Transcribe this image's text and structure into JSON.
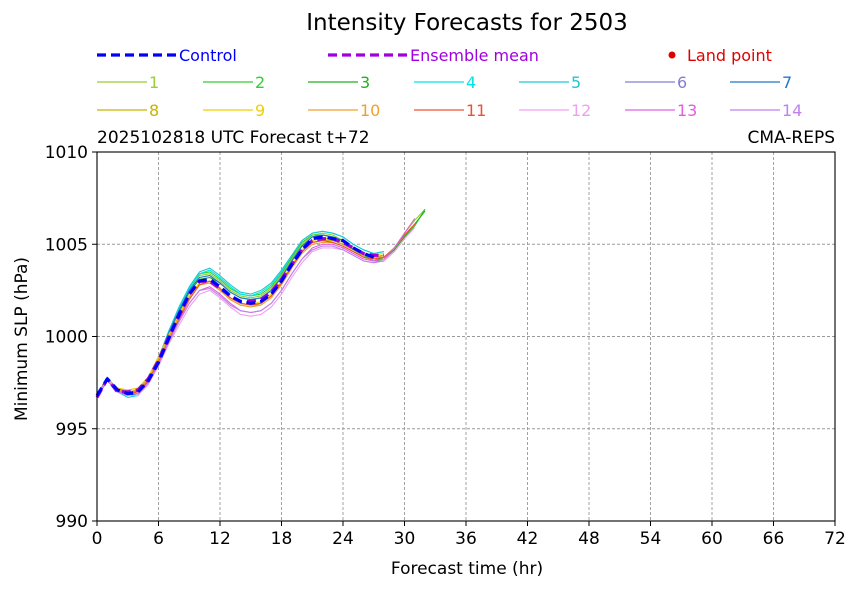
{
  "chart_data": {
    "type": "line",
    "title": "Intensity Forecasts for 2503",
    "subtitle_left": "2025102818 UTC Forecast t+72",
    "subtitle_right": "CMA-REPS",
    "xlabel": "Forecast time (hr)",
    "ylabel": "Minimum SLP (hPa)",
    "xlim": [
      0,
      72
    ],
    "ylim": [
      990,
      1010
    ],
    "xticks": [
      "0",
      "6",
      "12",
      "18",
      "24",
      "30",
      "36",
      "42",
      "48",
      "54",
      "60",
      "66",
      "72"
    ],
    "yticks": [
      "990",
      "995",
      "1000",
      "1005",
      "1010"
    ],
    "grid": true,
    "legend_top": [
      {
        "label": "Control",
        "color": "#0000ff",
        "style": "dashed"
      },
      {
        "label": "Ensemble mean",
        "color": "#a000e0",
        "style": "dashed"
      },
      {
        "label": "Land point",
        "color": "#e00000",
        "style": "dot"
      }
    ],
    "legend_members": [
      {
        "label": "1",
        "color": "#9acd32"
      },
      {
        "label": "2",
        "color": "#32cd32"
      },
      {
        "label": "3",
        "color": "#22b022"
      },
      {
        "label": "4",
        "color": "#00e5e5"
      },
      {
        "label": "5",
        "color": "#1ec8d2"
      },
      {
        "label": "6",
        "color": "#8080d0"
      },
      {
        "label": "7",
        "color": "#1e78c8"
      },
      {
        "label": "8",
        "color": "#c8b400"
      },
      {
        "label": "9",
        "color": "#f0d000"
      },
      {
        "label": "10",
        "color": "#f0a030"
      },
      {
        "label": "11",
        "color": "#f05030"
      },
      {
        "label": "12",
        "color": "#f0a0f0"
      },
      {
        "label": "13",
        "color": "#e060e0"
      },
      {
        "label": "14",
        "color": "#c080f0"
      }
    ],
    "x": [
      0,
      1,
      2,
      3,
      4,
      5,
      6,
      7,
      8,
      9,
      10,
      11,
      12,
      13,
      14,
      15,
      16,
      17,
      18,
      19,
      20,
      21,
      22,
      23,
      24,
      25,
      26,
      27,
      28,
      29,
      30,
      31,
      32
    ],
    "series": [
      {
        "name": "Control",
        "values": [
          996.8,
          997.7,
          997.1,
          996.9,
          997.0,
          997.6,
          998.6,
          999.9,
          1001.2,
          1002.3,
          1003.0,
          1003.1,
          1002.7,
          1002.2,
          1001.9,
          1001.8,
          1001.9,
          1002.3,
          1003.0,
          1003.9,
          1004.7,
          1005.3,
          1005.4,
          1005.3,
          1005.2,
          1004.8,
          1004.5,
          1004.3,
          null,
          null,
          null,
          null,
          null
        ]
      },
      {
        "name": "Ensemble mean",
        "values": [
          996.7,
          997.7,
          997.0,
          997.0,
          997.1,
          997.7,
          998.7,
          1000.0,
          1001.1,
          1002.3,
          1003.0,
          1003.0,
          1002.6,
          1002.2,
          1001.9,
          1001.9,
          1002.0,
          1002.4,
          1003.1,
          1003.9,
          1004.7,
          1005.2,
          1005.3,
          1005.3,
          1005.1,
          1004.8,
          1004.5,
          1004.4,
          1004.4,
          null,
          null,
          null,
          null
        ]
      },
      {
        "name": "1",
        "values": [
          996.8,
          997.7,
          997.2,
          997.0,
          997.0,
          997.6,
          998.7,
          1000.1,
          1001.4,
          1002.5,
          1003.3,
          1003.4,
          1003.0,
          1002.5,
          1002.2,
          1002.1,
          1002.2,
          1002.6,
          1003.3,
          1004.2,
          1005.0,
          1005.5,
          1005.6,
          1005.5,
          1005.2,
          1004.7,
          1004.3,
          1004.1,
          1004.3,
          1004.8,
          1005.6,
          1006.3,
          1006.9
        ]
      },
      {
        "name": "2",
        "values": [
          996.8,
          997.8,
          997.1,
          996.9,
          997.1,
          997.8,
          998.9,
          1000.2,
          1001.5,
          1002.6,
          1003.4,
          1003.5,
          1003.1,
          1002.6,
          1002.3,
          1002.2,
          1002.3,
          1002.7,
          1003.4,
          1004.3,
          1005.1,
          1005.5,
          1005.5,
          1005.4,
          1005.2,
          1004.8,
          1004.4,
          1004.1,
          1004.1,
          1004.6,
          1005.3,
          1006.0,
          1006.9
        ]
      },
      {
        "name": "3",
        "values": [
          996.7,
          997.7,
          997.2,
          997.0,
          997.1,
          997.7,
          998.8,
          1000.1,
          1001.3,
          1002.4,
          1003.1,
          1003.2,
          1002.9,
          1002.4,
          1002.1,
          1002.0,
          1002.1,
          1002.5,
          1003.2,
          1004.1,
          1004.9,
          1005.4,
          1005.5,
          1005.4,
          1005.2,
          1004.8,
          1004.4,
          1004.2,
          1004.2,
          1004.7,
          1005.4,
          1006.1,
          1006.8
        ]
      },
      {
        "name": "4",
        "values": [
          996.8,
          997.7,
          997.1,
          996.8,
          996.9,
          997.6,
          998.8,
          1000.3,
          1001.5,
          1002.6,
          1003.4,
          1003.6,
          1003.2,
          1002.7,
          1002.3,
          1002.2,
          1002.4,
          1002.8,
          1003.5,
          1004.4,
          1005.2,
          1005.6,
          1005.7,
          1005.6,
          1005.4,
          1005.0,
          1004.7,
          1004.5,
          1004.6,
          null,
          null,
          null,
          null
        ]
      },
      {
        "name": "5",
        "values": [
          996.8,
          997.7,
          997.0,
          996.7,
          996.8,
          997.5,
          998.8,
          1000.3,
          1001.6,
          1002.7,
          1003.5,
          1003.7,
          1003.3,
          1002.8,
          1002.4,
          1002.3,
          1002.5,
          1002.9,
          1003.6,
          1004.4,
          1005.2,
          1005.6,
          1005.7,
          1005.6,
          1005.4,
          1005.0,
          1004.7,
          1004.5,
          1004.6,
          null,
          null,
          null,
          null
        ]
      },
      {
        "name": "6",
        "values": [
          996.7,
          997.7,
          997.1,
          997.0,
          997.1,
          997.7,
          998.7,
          1000.0,
          1001.1,
          1002.2,
          1002.9,
          1003.0,
          1002.6,
          1002.1,
          1001.8,
          1001.7,
          1001.8,
          1002.2,
          1002.9,
          1003.8,
          1004.6,
          1005.1,
          1005.2,
          1005.2,
          1005.0,
          1004.7,
          1004.4,
          1004.3,
          1004.4,
          null,
          null,
          null,
          null
        ]
      },
      {
        "name": "7",
        "values": [
          996.8,
          997.7,
          997.0,
          996.8,
          996.9,
          997.6,
          998.8,
          1000.2,
          1001.4,
          1002.5,
          1003.2,
          1003.3,
          1002.9,
          1002.4,
          1002.1,
          1002.0,
          1002.1,
          1002.5,
          1003.2,
          1004.1,
          1004.9,
          1005.4,
          1005.5,
          1005.4,
          1005.2,
          1004.8,
          1004.5,
          1004.3,
          1004.4,
          null,
          null,
          null,
          null
        ]
      },
      {
        "name": "8",
        "values": [
          996.7,
          997.7,
          997.2,
          997.1,
          997.2,
          997.8,
          998.8,
          1000.0,
          1001.1,
          1002.1,
          1002.8,
          1002.9,
          1002.5,
          1002.0,
          1001.7,
          1001.6,
          1001.8,
          1002.2,
          1002.9,
          1003.8,
          1004.6,
          1005.1,
          1005.2,
          1005.2,
          1005.0,
          1004.7,
          1004.4,
          1004.3,
          1004.4,
          null,
          null,
          null,
          null
        ]
      },
      {
        "name": "9",
        "values": [
          996.7,
          997.7,
          997.2,
          997.1,
          997.2,
          997.8,
          998.9,
          1000.1,
          1001.2,
          1002.2,
          1002.9,
          1003.0,
          1002.6,
          1002.1,
          1001.8,
          1001.7,
          1001.9,
          1002.3,
          1003.0,
          1003.9,
          1004.7,
          1005.2,
          1005.3,
          1005.3,
          1005.1,
          1004.8,
          1004.5,
          1004.4,
          1004.5,
          null,
          null,
          null,
          null
        ]
      },
      {
        "name": "10",
        "values": [
          996.7,
          997.7,
          997.1,
          997.0,
          997.1,
          997.7,
          998.7,
          999.9,
          1001.0,
          1002.1,
          1002.8,
          1002.9,
          1002.5,
          1002.0,
          1001.7,
          1001.6,
          1001.7,
          1002.1,
          1002.8,
          1003.7,
          1004.5,
          1005.0,
          1005.1,
          1005.1,
          1004.9,
          1004.6,
          1004.3,
          1004.2,
          1004.4,
          null,
          null,
          null,
          null
        ]
      },
      {
        "name": "11",
        "values": [
          996.7,
          997.7,
          997.0,
          996.9,
          997.0,
          997.6,
          998.6,
          999.8,
          1000.9,
          1002.0,
          1002.8,
          1003.0,
          1002.6,
          1002.1,
          1001.8,
          1001.7,
          1001.8,
          1002.2,
          1002.9,
          1003.8,
          1004.6,
          1005.1,
          1005.2,
          1005.1,
          1004.9,
          1004.6,
          1004.3,
          1004.2,
          1004.3,
          1004.8,
          1005.5,
          1006.1,
          null
        ]
      },
      {
        "name": "12",
        "values": [
          996.7,
          997.7,
          997.0,
          996.8,
          996.8,
          997.4,
          998.4,
          999.6,
          1000.6,
          1001.6,
          1002.3,
          1002.5,
          1002.1,
          1001.6,
          1001.2,
          1001.1,
          1001.2,
          1001.6,
          1002.3,
          1003.2,
          1004.0,
          1004.6,
          1004.8,
          1004.8,
          1004.7,
          1004.4,
          1004.1,
          1004.0,
          1004.1,
          1004.6,
          1005.3,
          1005.9,
          null
        ]
      },
      {
        "name": "13",
        "values": [
          996.7,
          997.6,
          997.0,
          996.9,
          996.9,
          997.5,
          998.5,
          999.7,
          1000.8,
          1001.8,
          1002.5,
          1002.7,
          1002.3,
          1001.8,
          1001.4,
          1001.3,
          1001.4,
          1001.8,
          1002.5,
          1003.4,
          1004.2,
          1004.8,
          1005.0,
          1005.0,
          1004.8,
          1004.5,
          1004.2,
          1004.1,
          1004.2,
          1004.8,
          1005.6,
          1006.4,
          null
        ]
      },
      {
        "name": "14",
        "values": [
          996.7,
          997.6,
          997.0,
          996.9,
          996.9,
          997.5,
          998.5,
          999.7,
          1000.8,
          1001.8,
          1002.5,
          1002.6,
          1002.2,
          1001.7,
          1001.4,
          1001.3,
          1001.4,
          1001.8,
          1002.5,
          1003.4,
          1004.2,
          1004.7,
          1004.9,
          1004.9,
          1004.7,
          1004.4,
          1004.1,
          1004.0,
          1004.1,
          null,
          null,
          null,
          null
        ]
      }
    ]
  }
}
